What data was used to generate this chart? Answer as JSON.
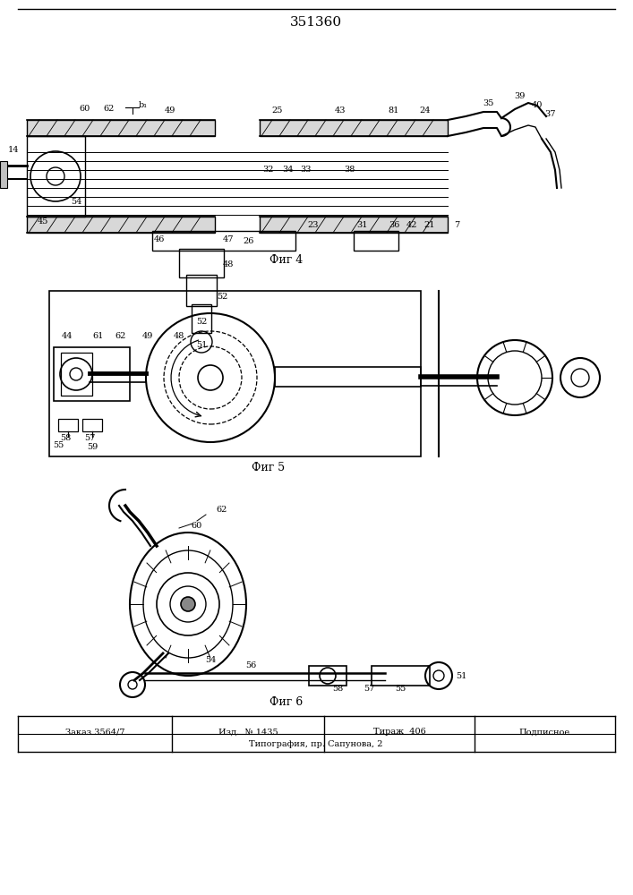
{
  "title": "351360",
  "fig4_label": "Фиг 4",
  "fig5_label": "Фиг 5",
  "fig6_label": "Фиг 6",
  "footer_col1": "Заказ 3564/7",
  "footer_col2": "Изд.  № 1435",
  "footer_col3": "Тираж  406",
  "footer_col4": "Подписное",
  "footer_line2": "Типография, пр. Сапунова, 2",
  "bg_color": "#ffffff",
  "line_color": "#000000"
}
